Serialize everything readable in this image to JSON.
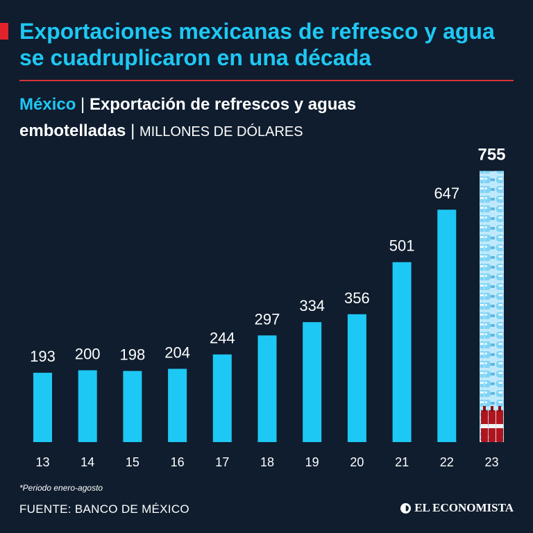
{
  "header": {
    "title": "Exportaciones mexicanas de refresco y agua se cuadruplicaron en una década"
  },
  "subtitle": {
    "country": "México",
    "separator": "|",
    "measure_line1": "Exportación de refrescos y aguas",
    "measure_line2": "embotelladas",
    "units": "MILLONES DE DÓLARES"
  },
  "colors": {
    "background": "#0f1d2e",
    "accent": "#1ec8f4",
    "rule": "#d8343a",
    "highlight": "#e3232c"
  },
  "chart_data": {
    "type": "bar",
    "title": "Exportación de refrescos y aguas embotelladas",
    "ylabel": "Millones de dólares",
    "xlabel": "",
    "categories": [
      "13",
      "14",
      "15",
      "16",
      "17",
      "18",
      "19",
      "20",
      "21",
      "22",
      "23"
    ],
    "values": [
      193,
      200,
      198,
      204,
      244,
      297,
      334,
      356,
      501,
      647,
      755
    ],
    "highlight_last": true,
    "ylim": [
      0,
      800
    ],
    "grid": false
  },
  "footer": {
    "footnote": "*Periodo enero-agosto",
    "source": "FUENTE: BANCO DE MÉXICO",
    "brand": "EL ECONOMISTA"
  }
}
